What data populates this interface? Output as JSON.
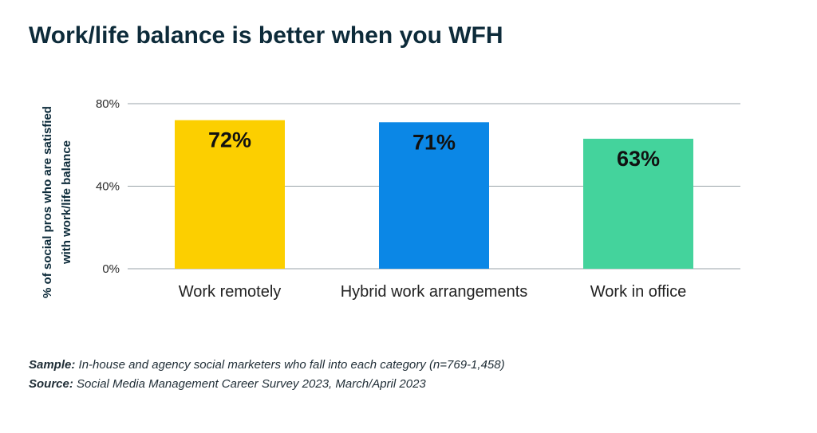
{
  "title": "Work/life balance is better when you WFH",
  "chart_data": {
    "type": "bar",
    "categories": [
      "Work remotely",
      "Hybrid work arrangements",
      "Work in office"
    ],
    "values": [
      72,
      71,
      63
    ],
    "value_labels": [
      "72%",
      "71%",
      "63%"
    ],
    "colors": [
      "#fccf00",
      "#0b87e6",
      "#44d39c"
    ],
    "ylabel": "% of social pros who are satisfied with work/life balance",
    "ylabel_lines": [
      "% of social pros who are satisfied",
      "with work/life balance"
    ],
    "ylim": [
      0,
      80
    ],
    "yticks": [
      0,
      40,
      80
    ],
    "ytick_labels": [
      "0%",
      "40%",
      "80%"
    ],
    "grid": true
  },
  "notes": {
    "sample_label": "Sample:",
    "sample_text": "In-house and agency social marketers who fall into each category (n=769-1,458)",
    "source_label": "Source:",
    "source_text": "Social Media Management Career Survey 2023, March/April 2023"
  }
}
